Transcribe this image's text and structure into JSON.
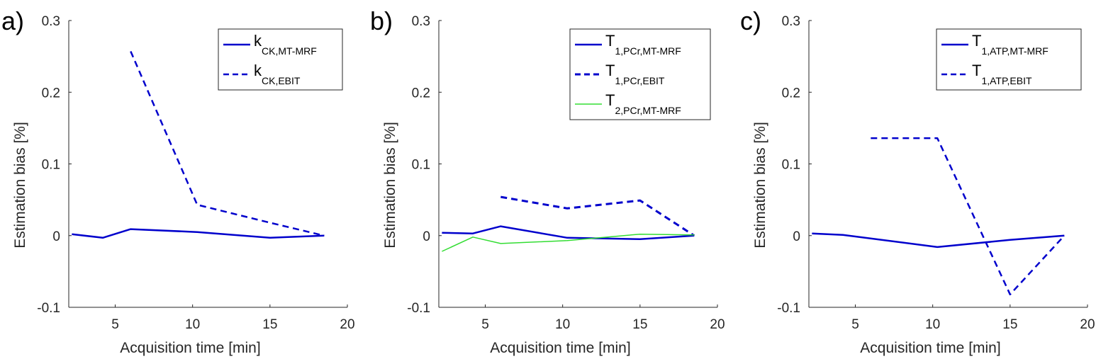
{
  "figure": {
    "ylabel": "Estimation bias [%]",
    "xlabel": "Acquisition time [min]"
  },
  "chart_data": [
    {
      "type": "line",
      "panel_label": "a)",
      "xlabel": "Acquisition time [min]",
      "ylabel": "Estimation bias [%]",
      "xlim": [
        2,
        20
      ],
      "ylim": [
        -0.1,
        0.3
      ],
      "xticks": [
        5,
        10,
        15,
        20
      ],
      "yticks": [
        -0.1,
        0,
        0.1,
        0.2,
        0.3
      ],
      "ytick_labels": [
        "-0.1",
        "0",
        "0.1",
        "0.2",
        "0.3"
      ],
      "xtick_labels": [
        "5",
        "10",
        "15",
        "20"
      ],
      "legend_position": "top-right",
      "series": [
        {
          "name": "k_CK,MT-MRF",
          "legend_main": "k",
          "legend_sub": "CK,MT-MRF",
          "style": "solid",
          "color": "#0000cc",
          "width": 2.5,
          "x": [
            2.2,
            4.2,
            6.0,
            10.3,
            15.0,
            18.5
          ],
          "y": [
            0.002,
            -0.003,
            0.009,
            0.005,
            -0.003,
            0.0
          ]
        },
        {
          "name": "k_CK,EBIT",
          "legend_main": "k",
          "legend_sub": "CK,EBIT",
          "style": "dashed",
          "color": "#0000cc",
          "width": 2.5,
          "x": [
            6.0,
            10.3,
            15.0,
            18.5
          ],
          "y": [
            0.257,
            0.043,
            0.018,
            0.0
          ]
        }
      ]
    },
    {
      "type": "line",
      "panel_label": "b)",
      "xlabel": "Acquisition time [min]",
      "ylabel": "Estimation bias [%]",
      "xlim": [
        2,
        20
      ],
      "ylim": [
        -0.1,
        0.3
      ],
      "xticks": [
        5,
        10,
        15,
        20
      ],
      "yticks": [
        -0.1,
        0,
        0.1,
        0.2,
        0.3
      ],
      "ytick_labels": [
        "-0.1",
        "0",
        "0.1",
        "0.2",
        "0.3"
      ],
      "xtick_labels": [
        "5",
        "10",
        "15",
        "20"
      ],
      "legend_position": "top-right",
      "series": [
        {
          "name": "T_1,PCr,MT-MRF",
          "legend_main": "T",
          "legend_sub": "1,PCr,MT-MRF",
          "style": "solid",
          "color": "#0000cc",
          "width": 2.5,
          "x": [
            2.2,
            4.2,
            6.0,
            10.3,
            15.0,
            18.5
          ],
          "y": [
            0.004,
            0.003,
            0.013,
            -0.003,
            -0.005,
            0.0
          ]
        },
        {
          "name": "T_1,PCr,EBIT",
          "legend_main": "T",
          "legend_sub": "1,PCr,EBIT",
          "style": "dashed",
          "color": "#0000cc",
          "width": 3,
          "x": [
            6.0,
            10.3,
            15.0,
            18.5
          ],
          "y": [
            0.054,
            0.038,
            0.049,
            0.0
          ]
        },
        {
          "name": "T_2,PCr,MT-MRF",
          "legend_main": "T",
          "legend_sub": "2,PCr,MT-MRF",
          "style": "solid",
          "color": "#33dd33",
          "width": 1.5,
          "x": [
            2.2,
            4.2,
            6.0,
            10.3,
            15.0,
            18.5
          ],
          "y": [
            -0.022,
            -0.002,
            -0.011,
            -0.007,
            0.002,
            0.001
          ]
        }
      ]
    },
    {
      "type": "line",
      "panel_label": "c)",
      "xlabel": "Acquisition time [min]",
      "ylabel": "Estimation bias [%]",
      "xlim": [
        2,
        20
      ],
      "ylim": [
        -0.1,
        0.3
      ],
      "xticks": [
        5,
        10,
        15,
        20
      ],
      "yticks": [
        -0.1,
        0,
        0.1,
        0.2,
        0.3
      ],
      "ytick_labels": [
        "-0.1",
        "0",
        "0.1",
        "0.2",
        "0.3"
      ],
      "xtick_labels": [
        "5",
        "10",
        "15",
        "20"
      ],
      "legend_position": "top-right",
      "series": [
        {
          "name": "T_1,ATP,MT-MRF",
          "legend_main": "T",
          "legend_sub": "1,ATP,MT-MRF",
          "style": "solid",
          "color": "#0000cc",
          "width": 2.5,
          "x": [
            2.2,
            4.2,
            10.3,
            15.0,
            18.5
          ],
          "y": [
            0.003,
            0.001,
            -0.016,
            -0.006,
            0.0
          ]
        },
        {
          "name": "T_1,ATP,EBIT",
          "legend_main": "T",
          "legend_sub": "1,ATP,EBIT",
          "style": "dashed",
          "color": "#0000cc",
          "width": 2.5,
          "x": [
            6.0,
            10.3,
            15.0,
            18.5
          ],
          "y": [
            0.136,
            0.136,
            -0.082,
            0.0
          ]
        }
      ]
    }
  ]
}
